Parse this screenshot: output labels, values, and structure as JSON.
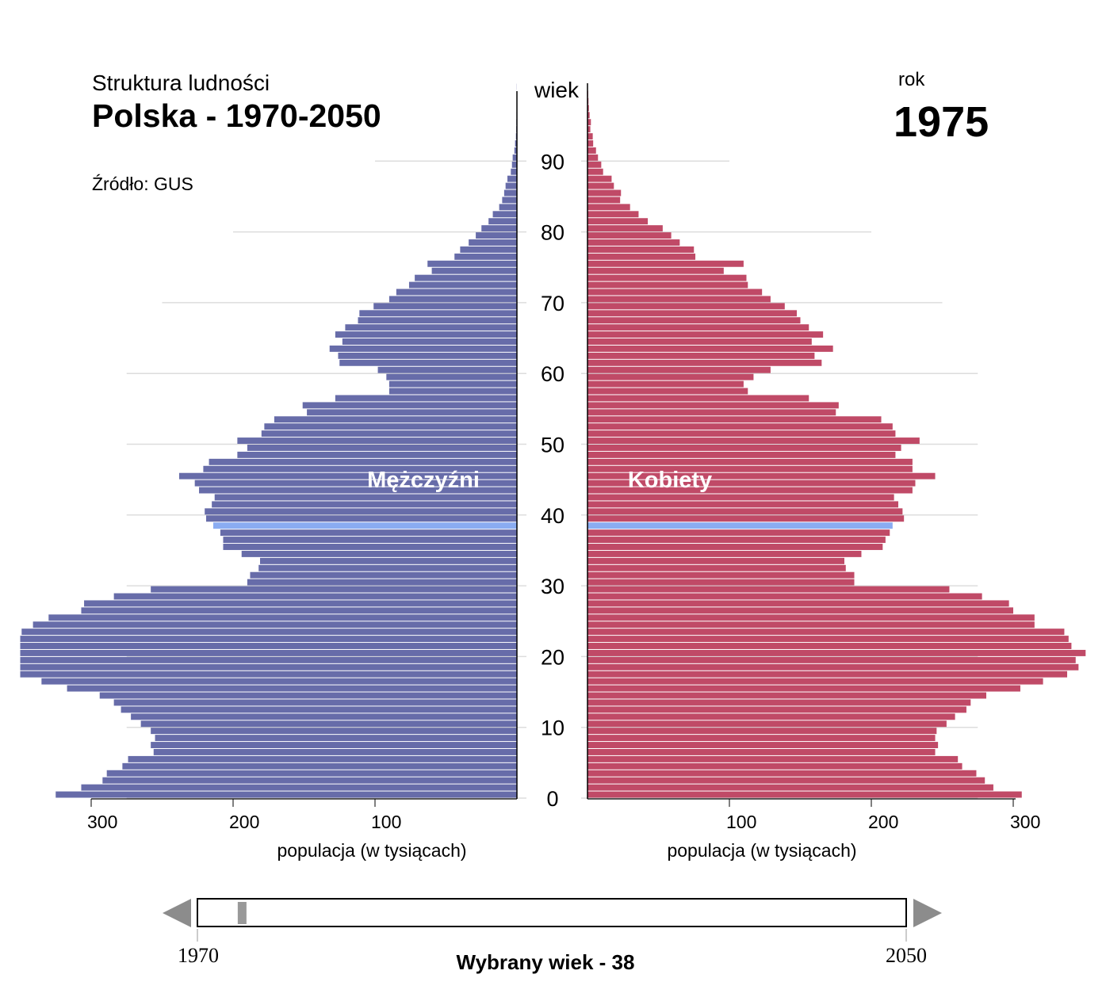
{
  "header": {
    "subtitle": "Struktura ludności",
    "title": "Polska - 1970-2050",
    "source": "Źródło: GUS",
    "year_label": "rok",
    "year": "1975"
  },
  "colors": {
    "male": "#676ca9",
    "female": "#c04a67",
    "highlight": "#8aacf2",
    "grid": "#dddddd",
    "slider_thumb": "#999999",
    "slider_arrow": "#8c8c8c"
  },
  "slider": {
    "start_label": "1970",
    "end_label": "2050",
    "start_year": 1970,
    "end_year": 2050,
    "current_year": 1975,
    "caption": "Wybrany wiek - 38",
    "prev_icon": "triangle-left-icon",
    "next_icon": "triangle-right-icon"
  },
  "chart_data": {
    "type": "bar",
    "orientation": "horizontal-population-pyramid",
    "y_axis_label": "wiek",
    "y_ticks": [
      "0",
      "10",
      "20",
      "30",
      "40",
      "50",
      "60",
      "70",
      "80",
      "90"
    ],
    "x_ticks_left": [
      "300",
      "200",
      "100"
    ],
    "x_ticks_right": [
      "100",
      "200",
      "300"
    ],
    "xlabel_left": "populacja (w tysiącach)",
    "xlabel_right": "populacja (w tysiącach)",
    "selected_age": 38,
    "age_range": [
      0,
      100
    ],
    "xlim": [
      0,
      350
    ],
    "grid": true,
    "ages": [
      0,
      1,
      2,
      3,
      4,
      5,
      6,
      7,
      8,
      9,
      10,
      11,
      12,
      13,
      14,
      15,
      16,
      17,
      18,
      19,
      20,
      21,
      22,
      23,
      24,
      25,
      26,
      27,
      28,
      29,
      30,
      31,
      32,
      33,
      34,
      35,
      36,
      37,
      38,
      39,
      40,
      41,
      42,
      43,
      44,
      45,
      46,
      47,
      48,
      49,
      50,
      51,
      52,
      53,
      54,
      55,
      56,
      57,
      58,
      59,
      60,
      61,
      62,
      63,
      64,
      65,
      66,
      67,
      68,
      69,
      70,
      71,
      72,
      73,
      74,
      75,
      76,
      77,
      78,
      79,
      80,
      81,
      82,
      83,
      84,
      85,
      86,
      87,
      88,
      89,
      90,
      91,
      92,
      93,
      94,
      95,
      96,
      97,
      98,
      99,
      100
    ],
    "series": [
      {
        "name": "Mężczyźni",
        "side": "left",
        "values": [
          325,
          307,
          292,
          289,
          278,
          274,
          256,
          258,
          255,
          258,
          265,
          272,
          279,
          284,
          294,
          317,
          335,
          350,
          350,
          350,
          350,
          350,
          350,
          349,
          341,
          330,
          307,
          305,
          284,
          258,
          190,
          188,
          182,
          181,
          194,
          207,
          207,
          209,
          214,
          219,
          220,
          215,
          213,
          224,
          227,
          238,
          221,
          217,
          197,
          190,
          197,
          180,
          178,
          171,
          148,
          151,
          128,
          90,
          90,
          92,
          98,
          125,
          126,
          132,
          123,
          128,
          121,
          112,
          111,
          101,
          90,
          85,
          76,
          72,
          60,
          63,
          44,
          40,
          34,
          29,
          25,
          20,
          17,
          12.5,
          10.4,
          9,
          8,
          6.7,
          4.3,
          3.5,
          3,
          1.8,
          1.3,
          0.7,
          0.5,
          0.4,
          0.3,
          0.2,
          0.1,
          0.1,
          0.1
        ]
      },
      {
        "name": "Kobiety",
        "side": "right",
        "values": [
          306,
          286,
          280,
          274,
          264,
          261,
          245,
          247,
          245,
          246,
          253,
          259,
          267,
          270,
          281,
          305,
          321,
          338,
          346,
          344,
          351,
          341,
          339,
          336,
          315,
          315,
          300,
          297,
          278,
          255,
          188,
          188,
          182,
          181,
          193,
          208,
          210,
          213,
          215,
          223,
          222,
          219,
          216,
          229,
          231,
          245,
          229,
          229,
          217,
          221,
          234,
          217,
          215,
          207,
          175,
          177,
          156,
          113,
          110,
          117,
          129,
          165,
          160,
          173,
          158,
          166,
          156,
          150,
          147.5,
          139,
          129,
          123,
          113,
          112,
          96,
          110,
          76,
          75,
          65,
          59,
          53,
          42.5,
          36,
          30,
          23,
          23.6,
          18.6,
          17,
          11,
          9.7,
          7.4,
          6,
          4,
          3.7,
          2,
          2.4,
          1.5,
          1,
          0.7,
          0.5,
          0.3
        ]
      }
    ]
  }
}
